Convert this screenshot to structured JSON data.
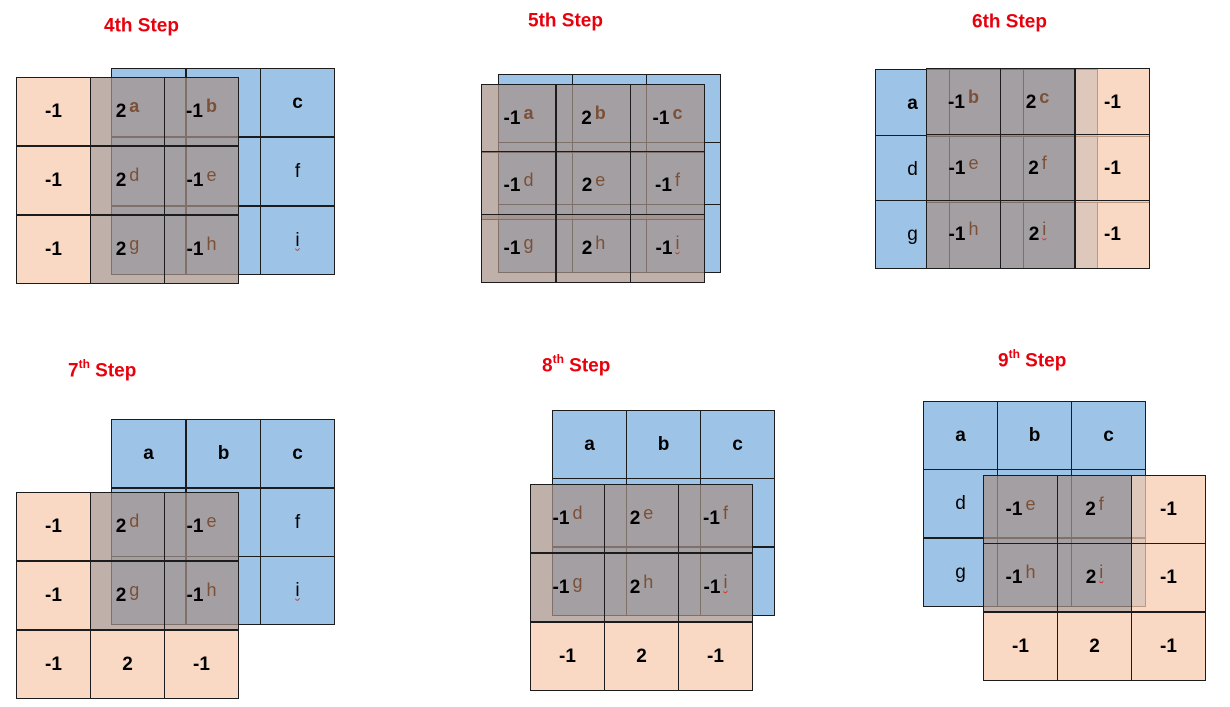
{
  "letters": [
    "a",
    "b",
    "c",
    "d",
    "e",
    "f",
    "g",
    "h",
    "i"
  ],
  "steps": [
    {
      "pre": "4",
      "sup": "",
      "post": "th Step"
    },
    {
      "pre": "5",
      "sup": "",
      "post": "th Step"
    },
    {
      "pre": "6",
      "sup": "",
      "post": "th Step"
    },
    {
      "pre": "7",
      "sup": "th",
      "post": " Step"
    },
    {
      "pre": "8",
      "sup": "th",
      "post": "  Step"
    },
    {
      "pre": "9",
      "sup": "th",
      "post": "  Step"
    }
  ],
  "kernel": [
    "-1",
    "2",
    "-1",
    "-1",
    "2",
    "-1",
    "-1",
    "2",
    "-1"
  ],
  "colors": {
    "title": "#e8000c",
    "input_blue": "#9dc3e6",
    "kernel_orange": "#f7caac",
    "overlap": "#a69288"
  }
}
